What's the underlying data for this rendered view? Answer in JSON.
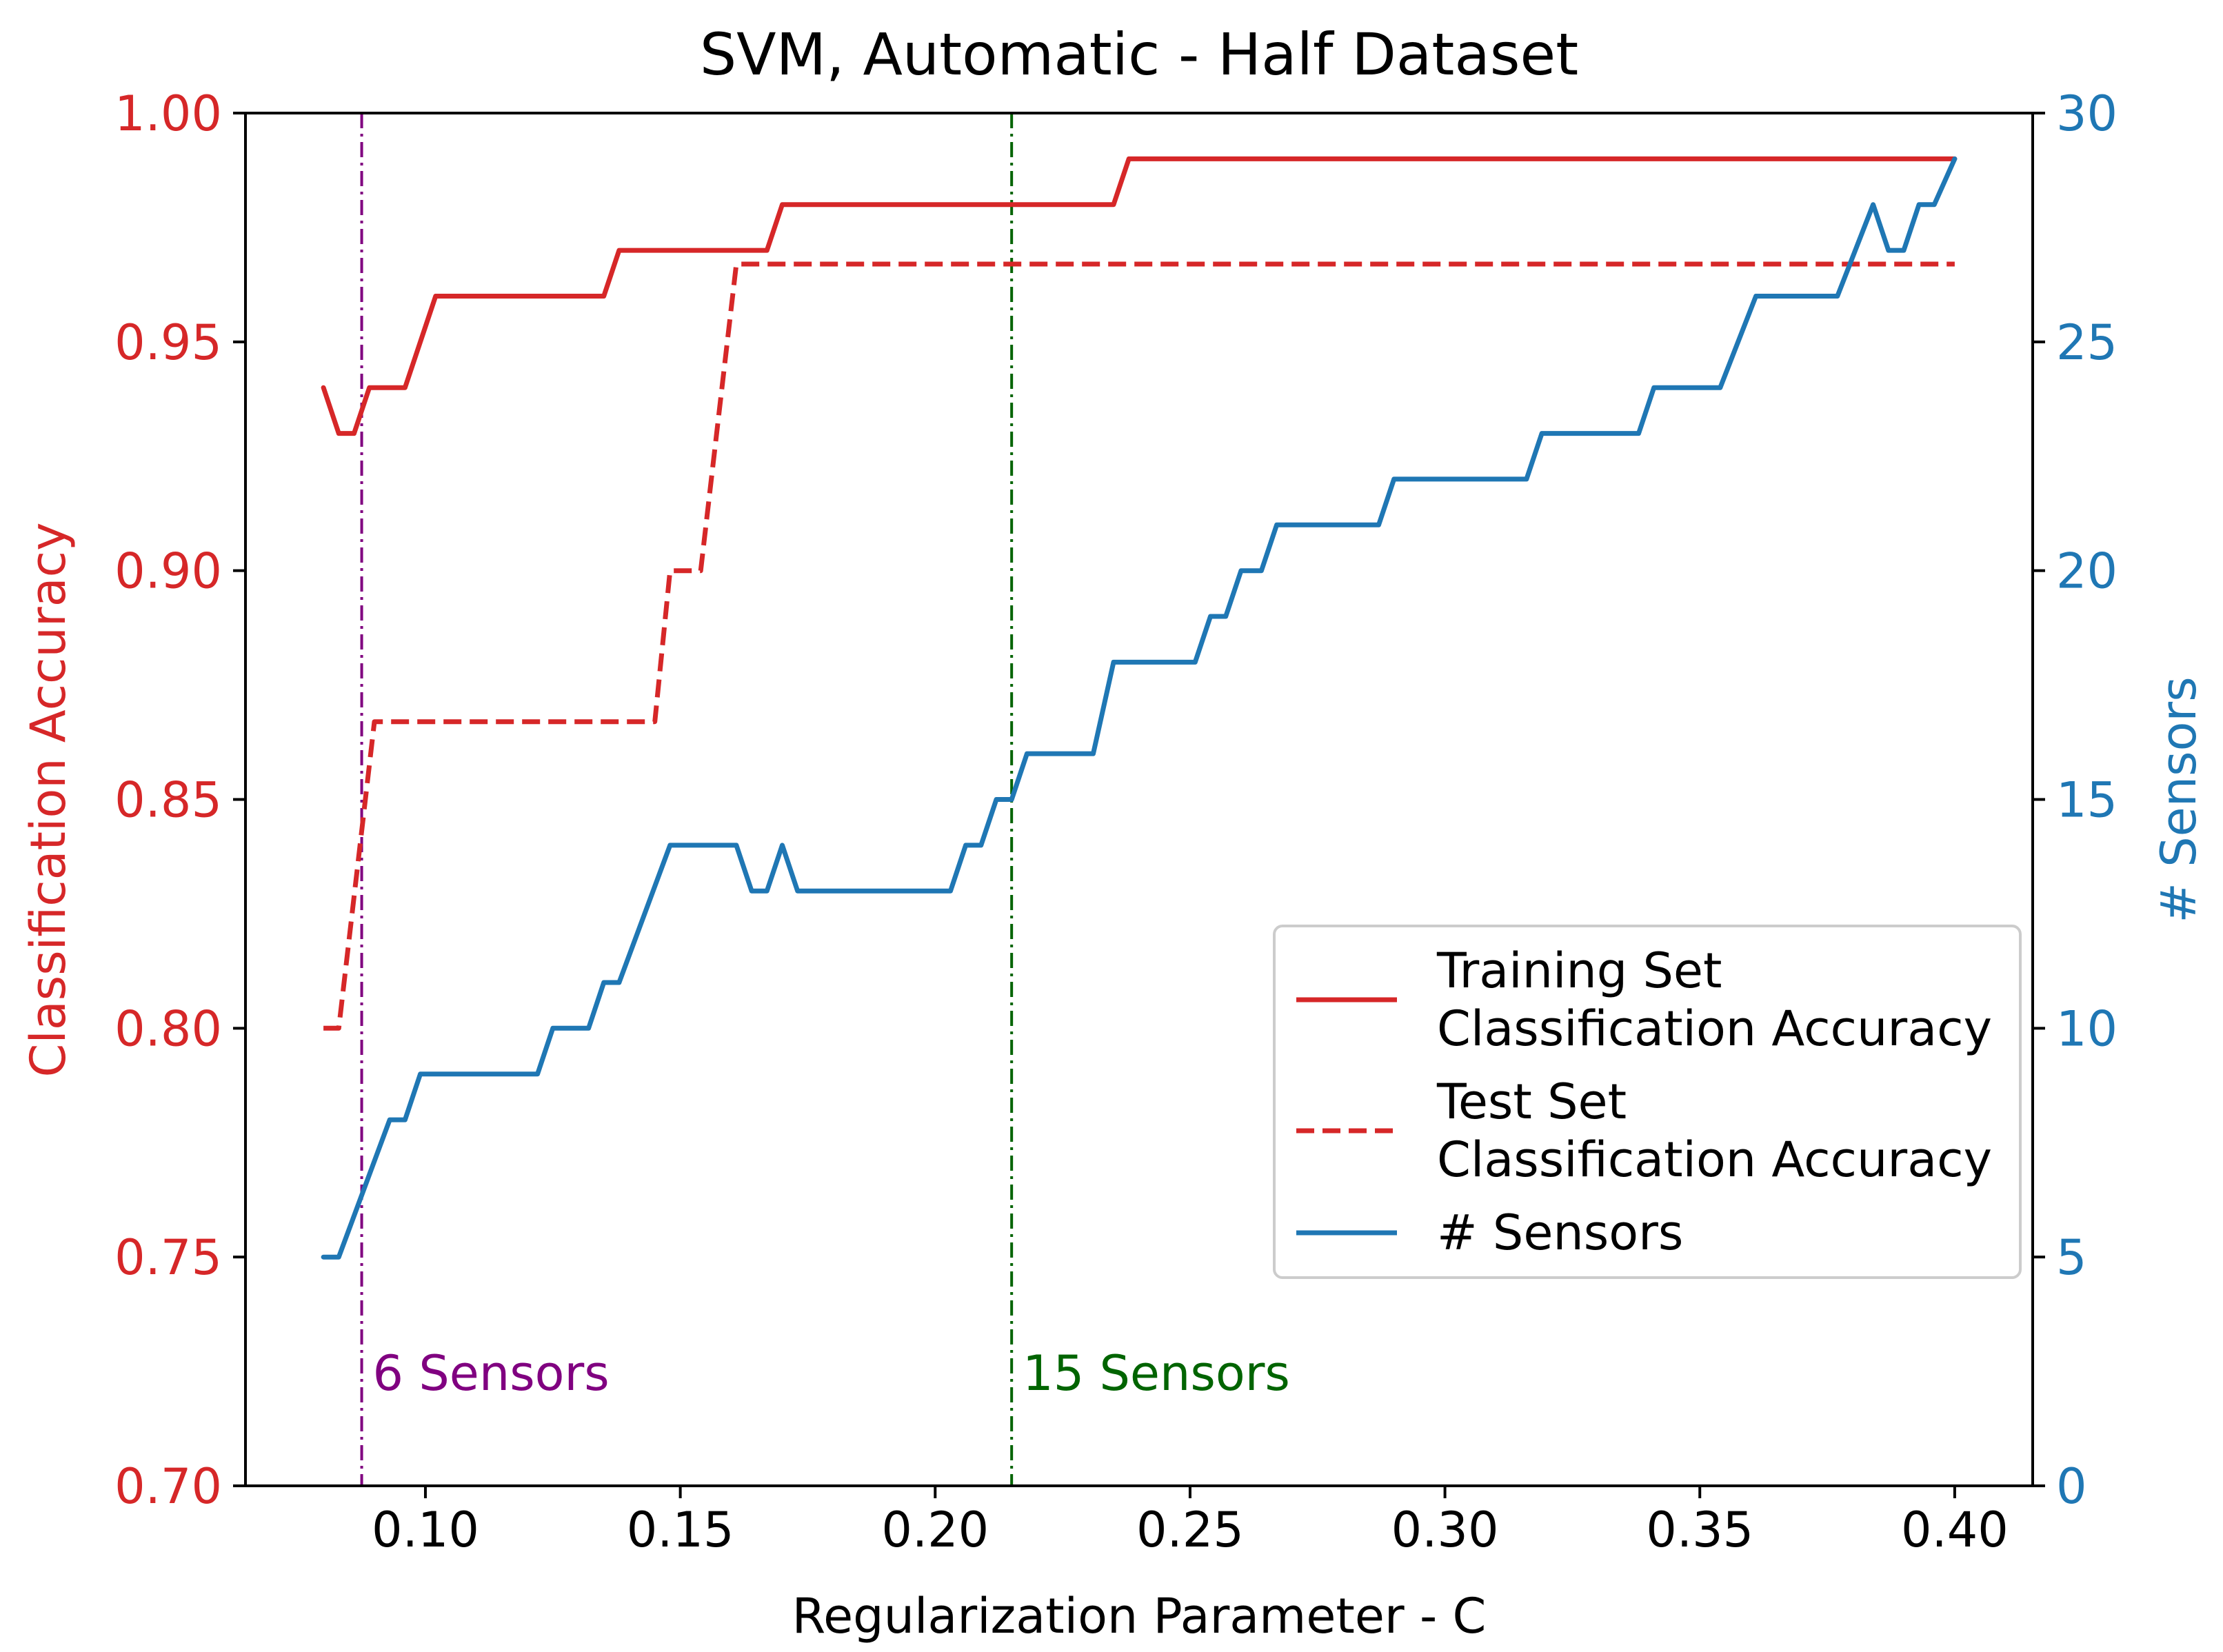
{
  "chart_data": {
    "type": "line",
    "title": "SVM, Automatic - Half Dataset",
    "xlabel": "Regularization Parameter - C",
    "ylabel_left": "Classification Accuracy",
    "ylabel_right": "# Sensors",
    "xlim": [
      0.0647,
      0.4153
    ],
    "ylim_left": [
      0.7,
      1.0
    ],
    "ylim_right": [
      0,
      30
    ],
    "x_ticks": [
      0.1,
      0.15,
      0.2,
      0.25,
      0.3,
      0.35,
      0.4
    ],
    "x_tick_labels": [
      "0.10",
      "0.15",
      "0.20",
      "0.25",
      "0.30",
      "0.35",
      "0.40"
    ],
    "y_left_ticks": [
      0.7,
      0.75,
      0.8,
      0.85,
      0.9,
      0.95,
      1.0
    ],
    "y_left_tick_labels": [
      "0.70",
      "0.75",
      "0.80",
      "0.85",
      "0.90",
      "0.95",
      "1.00"
    ],
    "y_right_ticks": [
      0,
      5,
      10,
      15,
      20,
      25,
      30
    ],
    "y_right_tick_labels": [
      "0",
      "5",
      "10",
      "15",
      "20",
      "25",
      "30"
    ],
    "grid": false,
    "legend_position": "center-right",
    "series": [
      {
        "name": "Training Set Classification Accuracy",
        "legend_lines": [
          "Training Set",
          "Classification Accuracy"
        ],
        "axis": "left",
        "color": "#d62728",
        "style": "solid",
        "x": [
          0.08,
          0.083,
          0.086,
          0.089,
          0.096,
          0.102,
          0.135,
          0.138,
          0.167,
          0.17,
          0.235,
          0.238,
          0.4
        ],
        "y": [
          0.94,
          0.93,
          0.93,
          0.94,
          0.94,
          0.96,
          0.96,
          0.97,
          0.97,
          0.98,
          0.98,
          0.99,
          0.99
        ]
      },
      {
        "name": "Test Set Classification Accuracy",
        "legend_lines": [
          "Test Set",
          "Classification Accuracy"
        ],
        "axis": "left",
        "color": "#d62728",
        "style": "dashed",
        "x": [
          0.08,
          0.083,
          0.09,
          0.145,
          0.148,
          0.154,
          0.161,
          0.4
        ],
        "y": [
          0.8,
          0.8,
          0.867,
          0.867,
          0.9,
          0.9,
          0.967,
          0.967
        ]
      },
      {
        "name": "# Sensors",
        "legend_lines": [
          "# Sensors"
        ],
        "axis": "right",
        "color": "#1f77b4",
        "style": "solid",
        "x": [
          0.08,
          0.083,
          0.093,
          0.096,
          0.099,
          0.122,
          0.125,
          0.132,
          0.135,
          0.138,
          0.148,
          0.161,
          0.164,
          0.167,
          0.17,
          0.173,
          0.203,
          0.206,
          0.209,
          0.212,
          0.215,
          0.218,
          0.231,
          0.235,
          0.251,
          0.254,
          0.257,
          0.26,
          0.264,
          0.267,
          0.287,
          0.29,
          0.316,
          0.319,
          0.338,
          0.341,
          0.354,
          0.361,
          0.377,
          0.384,
          0.387,
          0.39,
          0.393,
          0.396,
          0.4
        ],
        "y": [
          5,
          5,
          8,
          8,
          9,
          9,
          10,
          10,
          11,
          11,
          14,
          14,
          13,
          13,
          14,
          13,
          13,
          14,
          14,
          15,
          15,
          16,
          16,
          18,
          18,
          19,
          19,
          20,
          20,
          21,
          21,
          22,
          22,
          23,
          23,
          24,
          24,
          26,
          26,
          28,
          27,
          27,
          28,
          28,
          29
        ]
      }
    ],
    "vlines": [
      {
        "x": 0.0875,
        "label": "6 Sensors",
        "color": "#800080",
        "style": "dashdot"
      },
      {
        "x": 0.215,
        "label": "15 Sensors",
        "color": "#006400",
        "style": "dashdot"
      }
    ],
    "colors": {
      "left_axis": "#d62728",
      "right_axis": "#1f77b4",
      "axes": "#000000"
    }
  }
}
